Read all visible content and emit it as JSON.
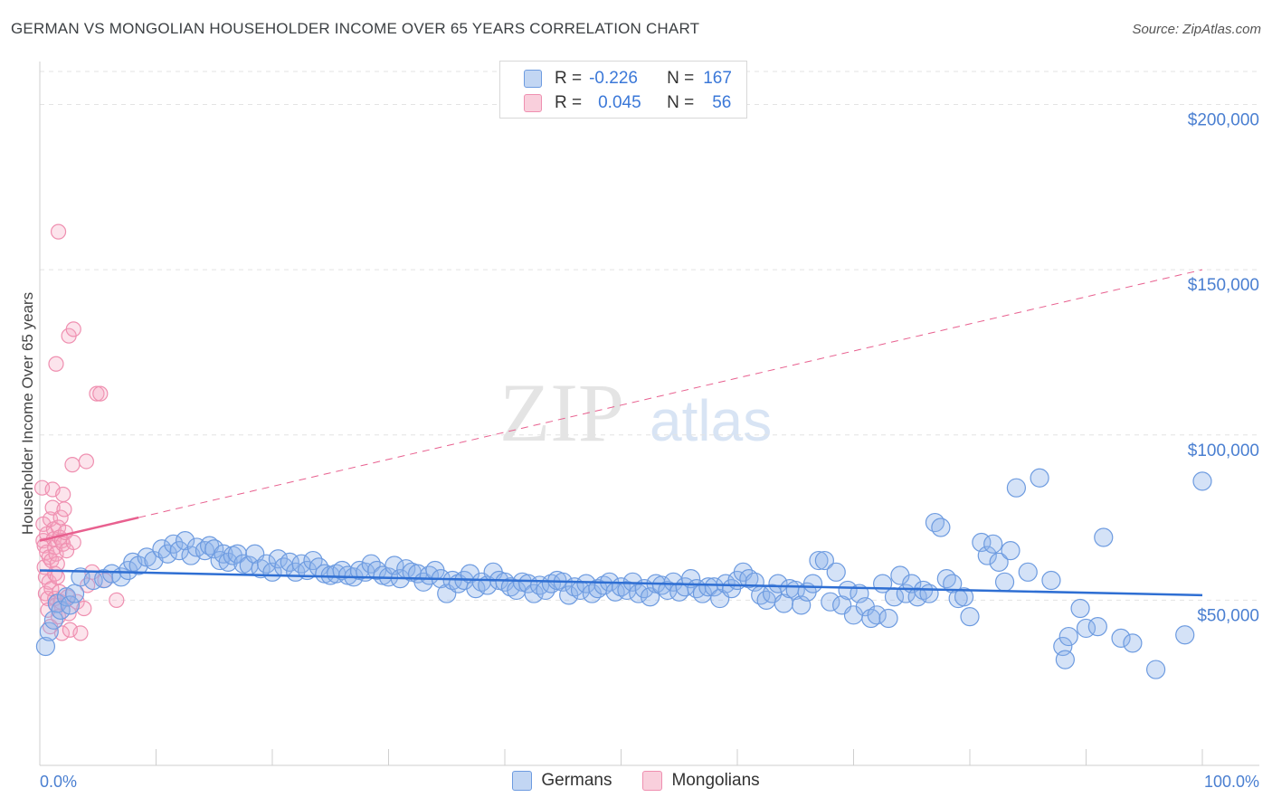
{
  "header": {
    "title": "GERMAN VS MONGOLIAN HOUSEHOLDER INCOME OVER 65 YEARS CORRELATION CHART",
    "source": "Source: ZipAtlas.com"
  },
  "watermark": {
    "zip": "ZIP",
    "atlas": "atlas"
  },
  "legend_box": {
    "rows": [
      {
        "r_label": "R =",
        "r_value": "-0.226",
        "n_label": "N =",
        "n_value": "167",
        "color": "#8fb4ea"
      },
      {
        "r_label": "R =",
        "r_value": "0.045",
        "n_label": "N =",
        "n_value": "56",
        "color": "#f4a7c0"
      }
    ]
  },
  "bottom_legend": [
    {
      "label": "Germans",
      "color": "#8fb4ea"
    },
    {
      "label": "Mongolians",
      "color": "#f4a7c0"
    }
  ],
  "colors": {
    "blue_fill": "rgba(143,180,234,0.38)",
    "blue_stroke": "#6d9be0",
    "blue_line": "#2f6fd3",
    "pink_fill": "rgba(244,167,192,0.30)",
    "pink_stroke": "#ef8fb0",
    "pink_line": "#e8608f",
    "grid": "#e3e3e3",
    "axis_text": "#4a7fd1"
  },
  "chart_data": {
    "type": "scatter",
    "title": "GERMAN VS MONGOLIAN HOUSEHOLDER INCOME OVER 65 YEARS CORRELATION CHART",
    "xlabel": "",
    "ylabel": "Householder Income Over 65 years",
    "xlim": [
      0,
      100
    ],
    "ylim": [
      0,
      210000
    ],
    "x_tick_labels": [
      "0.0%",
      "100.0%"
    ],
    "y_ticks": [
      50000,
      100000,
      150000,
      200000
    ],
    "y_tick_labels": [
      "$50,000",
      "$100,000",
      "$150,000",
      "$200,000"
    ],
    "grid": "horizontal dashed",
    "legend": "top-center",
    "series": [
      {
        "name": "Germans",
        "r": -0.226,
        "n": 167,
        "trend": {
          "x": [
            0,
            100
          ],
          "y": [
            59000,
            51500
          ],
          "style": "solid"
        },
        "points": [
          [
            0.5,
            36000
          ],
          [
            0.8,
            40500
          ],
          [
            1.2,
            44000
          ],
          [
            1.5,
            49000
          ],
          [
            1.8,
            47000
          ],
          [
            2.3,
            51000
          ],
          [
            2.6,
            48500
          ],
          [
            3,
            52000
          ],
          [
            3.5,
            57000
          ],
          [
            4.6,
            56000
          ],
          [
            5.5,
            56500
          ],
          [
            6.2,
            58000
          ],
          [
            7,
            57000
          ],
          [
            7.6,
            59000
          ],
          [
            8,
            61500
          ],
          [
            8.5,
            60500
          ],
          [
            9.2,
            63000
          ],
          [
            9.8,
            62000
          ],
          [
            10.5,
            65500
          ],
          [
            11,
            64000
          ],
          [
            11.5,
            67000
          ],
          [
            12,
            65000
          ],
          [
            12.5,
            68000
          ],
          [
            13,
            63500
          ],
          [
            13.5,
            66000
          ],
          [
            14.2,
            65000
          ],
          [
            14.6,
            66500
          ],
          [
            15,
            65500
          ],
          [
            15.5,
            62000
          ],
          [
            15.8,
            64000
          ],
          [
            16.2,
            61500
          ],
          [
            16.6,
            63500
          ],
          [
            17,
            64000
          ],
          [
            17.5,
            61000
          ],
          [
            18,
            60500
          ],
          [
            18.5,
            64000
          ],
          [
            19,
            59500
          ],
          [
            19.5,
            61000
          ],
          [
            20,
            58500
          ],
          [
            20.5,
            62500
          ],
          [
            21,
            60000
          ],
          [
            21.5,
            61500
          ],
          [
            22,
            58500
          ],
          [
            22.5,
            61000
          ],
          [
            23,
            59000
          ],
          [
            23.5,
            62000
          ],
          [
            24,
            60000
          ],
          [
            24.5,
            58000
          ],
          [
            25,
            57500
          ],
          [
            25.5,
            58000
          ],
          [
            26,
            59000
          ],
          [
            26.5,
            57500
          ],
          [
            27,
            57000
          ],
          [
            27.5,
            59000
          ],
          [
            28,
            58500
          ],
          [
            28.5,
            61000
          ],
          [
            29,
            59000
          ],
          [
            29.5,
            57500
          ],
          [
            30,
            57000
          ],
          [
            30.5,
            60500
          ],
          [
            31,
            56500
          ],
          [
            31.5,
            59500
          ],
          [
            32,
            58500
          ],
          [
            32.5,
            58000
          ],
          [
            33,
            55500
          ],
          [
            33.5,
            57500
          ],
          [
            34,
            59000
          ],
          [
            34.5,
            56500
          ],
          [
            35,
            52000
          ],
          [
            35.5,
            56000
          ],
          [
            36,
            55000
          ],
          [
            36.5,
            56000
          ],
          [
            37,
            58000
          ],
          [
            37.5,
            53500
          ],
          [
            38,
            55500
          ],
          [
            38.5,
            54500
          ],
          [
            39,
            58500
          ],
          [
            39.5,
            56000
          ],
          [
            40,
            55500
          ],
          [
            40.5,
            54000
          ],
          [
            41,
            53000
          ],
          [
            41.5,
            55500
          ],
          [
            42,
            55000
          ],
          [
            42.5,
            52000
          ],
          [
            43,
            54500
          ],
          [
            43.5,
            53000
          ],
          [
            44,
            55000
          ],
          [
            44.5,
            56000
          ],
          [
            45,
            55500
          ],
          [
            45.5,
            51500
          ],
          [
            46,
            54000
          ],
          [
            46.5,
            53000
          ],
          [
            47,
            55000
          ],
          [
            47.5,
            52000
          ],
          [
            48,
            53500
          ],
          [
            48.5,
            54500
          ],
          [
            49,
            55500
          ],
          [
            49.5,
            52500
          ],
          [
            50,
            54000
          ],
          [
            50.5,
            53000
          ],
          [
            51,
            55500
          ],
          [
            51.5,
            52000
          ],
          [
            52,
            53500
          ],
          [
            52.5,
            51000
          ],
          [
            53,
            55000
          ],
          [
            53.5,
            54500
          ],
          [
            54,
            53000
          ],
          [
            54.5,
            55500
          ],
          [
            55,
            52500
          ],
          [
            55.5,
            54000
          ],
          [
            56,
            56500
          ],
          [
            56.5,
            53500
          ],
          [
            57,
            52000
          ],
          [
            57.5,
            54000
          ],
          [
            58,
            54000
          ],
          [
            58.5,
            50500
          ],
          [
            59,
            55000
          ],
          [
            59.5,
            53500
          ],
          [
            60,
            56000
          ],
          [
            60.5,
            58500
          ],
          [
            61,
            56500
          ],
          [
            61.5,
            55500
          ],
          [
            62,
            51500
          ],
          [
            62.5,
            50000
          ],
          [
            63,
            52000
          ],
          [
            63.5,
            55000
          ],
          [
            64,
            49000
          ],
          [
            64.5,
            53500
          ],
          [
            65,
            53000
          ],
          [
            65.5,
            48500
          ],
          [
            66,
            52500
          ],
          [
            66.5,
            55000
          ],
          [
            67,
            62000
          ],
          [
            67.5,
            62000
          ],
          [
            68,
            49500
          ],
          [
            68.5,
            58500
          ],
          [
            69,
            48500
          ],
          [
            69.5,
            53000
          ],
          [
            70,
            45500
          ],
          [
            70.5,
            52000
          ],
          [
            71,
            48000
          ],
          [
            71.5,
            44500
          ],
          [
            72,
            45500
          ],
          [
            72.5,
            55000
          ],
          [
            73,
            44500
          ],
          [
            73.5,
            51000
          ],
          [
            74,
            57500
          ],
          [
            74.5,
            52000
          ],
          [
            75,
            55000
          ],
          [
            75.5,
            51000
          ],
          [
            76,
            53000
          ],
          [
            76.5,
            52000
          ],
          [
            77,
            73500
          ],
          [
            77.5,
            72000
          ],
          [
            78,
            56500
          ],
          [
            78.5,
            55000
          ],
          [
            79,
            50500
          ],
          [
            79.5,
            51000
          ],
          [
            80,
            45000
          ],
          [
            81,
            67500
          ],
          [
            81.5,
            63500
          ],
          [
            82,
            67000
          ],
          [
            82.5,
            61500
          ],
          [
            83,
            55500
          ],
          [
            83.5,
            65000
          ],
          [
            84,
            84000
          ],
          [
            85,
            58500
          ],
          [
            86,
            87000
          ],
          [
            87,
            56000
          ],
          [
            88,
            36000
          ],
          [
            88.2,
            32000
          ],
          [
            88.5,
            39000
          ],
          [
            89.5,
            47500
          ],
          [
            90,
            41500
          ],
          [
            91,
            42000
          ],
          [
            91.5,
            69000
          ],
          [
            93,
            38500
          ],
          [
            94,
            37000
          ],
          [
            96,
            29000
          ],
          [
            98.5,
            39500
          ],
          [
            100,
            86000
          ]
        ]
      },
      {
        "name": "Mongolians",
        "r": 0.045,
        "n": 56,
        "trend": {
          "x": [
            0,
            8.5,
            100
          ],
          "y": [
            68000,
            75000,
            150000
          ],
          "style": "solid-then-dashed"
        },
        "points": [
          [
            0.2,
            84000
          ],
          [
            0.3,
            68000
          ],
          [
            0.3,
            73000
          ],
          [
            0.4,
            66500
          ],
          [
            0.4,
            60000
          ],
          [
            0.5,
            57000
          ],
          [
            0.5,
            52000
          ],
          [
            0.6,
            70000
          ],
          [
            0.6,
            64500
          ],
          [
            0.7,
            50500
          ],
          [
            0.7,
            47000
          ],
          [
            0.8,
            63000
          ],
          [
            0.8,
            55500
          ],
          [
            0.9,
            74500
          ],
          [
            0.9,
            42000
          ],
          [
            1.0,
            62000
          ],
          [
            1.0,
            53500
          ],
          [
            1.1,
            83500
          ],
          [
            1.1,
            78000
          ],
          [
            1.2,
            71500
          ],
          [
            1.2,
            68500
          ],
          [
            1.3,
            66000
          ],
          [
            1.3,
            58000
          ],
          [
            1.3,
            50500
          ],
          [
            1.4,
            64000
          ],
          [
            1.4,
            48500
          ],
          [
            1.5,
            61000
          ],
          [
            1.5,
            57000
          ],
          [
            1.6,
            72000
          ],
          [
            1.6,
            45000
          ],
          [
            1.7,
            69000
          ],
          [
            1.7,
            52500
          ],
          [
            1.8,
            75000
          ],
          [
            1.8,
            49500
          ],
          [
            1.9,
            68000
          ],
          [
            1.9,
            40000
          ],
          [
            2.0,
            67000
          ],
          [
            2.0,
            82000
          ],
          [
            2.1,
            77500
          ],
          [
            2.2,
            70500
          ],
          [
            2.3,
            65000
          ],
          [
            2.4,
            51000
          ],
          [
            2.5,
            46000
          ],
          [
            2.6,
            41000
          ],
          [
            2.8,
            91000
          ],
          [
            2.9,
            67500
          ],
          [
            3.2,
            49500
          ],
          [
            3.5,
            40000
          ],
          [
            3.8,
            47500
          ],
          [
            4.0,
            92000
          ],
          [
            4.1,
            54500
          ],
          [
            4.5,
            58500
          ],
          [
            4.9,
            112500
          ],
          [
            5.2,
            112500
          ],
          [
            5.6,
            56000
          ],
          [
            6.6,
            50000
          ],
          [
            1.4,
            121500
          ],
          [
            1.6,
            161500
          ],
          [
            2.5,
            130000
          ],
          [
            2.9,
            132000
          ]
        ]
      }
    ]
  }
}
